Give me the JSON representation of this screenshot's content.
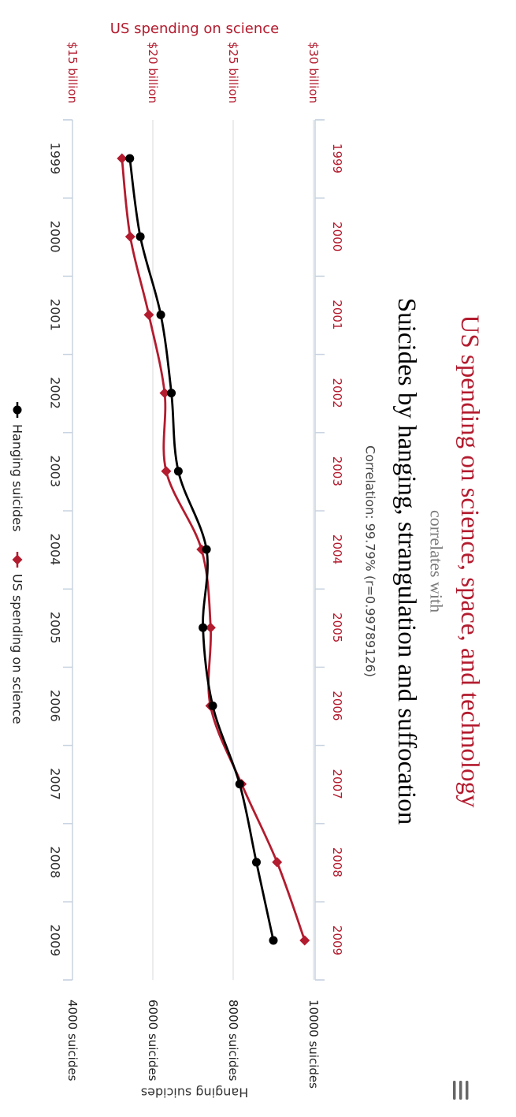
{
  "menu_icon": "hamburger-menu-icon",
  "colors": {
    "spending": "#b31b2e",
    "suicides": "#000000",
    "gray": "#7a7a7a",
    "axis": "#c8d3e0"
  },
  "chart_data": {
    "type": "line",
    "orientation": "rotated-90-clockwise",
    "title": {
      "line1": "US spending on science, space, and technology",
      "line2": "correlates with",
      "line3": "Suicides by hanging, strangulation and suffocation"
    },
    "subtitle": "Correlation: 99.79% (r=0.99789126)",
    "x": [
      "1999",
      "2000",
      "2001",
      "2002",
      "2003",
      "2004",
      "2005",
      "2006",
      "2007",
      "2008",
      "2009"
    ],
    "axes": {
      "spending": {
        "title": "US spending on science",
        "range": [
          15,
          30
        ],
        "ticks": [
          "$15 billion",
          "$20 billion",
          "$25 billion",
          "$30 billion"
        ]
      },
      "suicides": {
        "title": "Hanging suicides",
        "range": [
          4000,
          10000
        ],
        "ticks": [
          "4000 suicides",
          "6000 suicides",
          "8000 suicides",
          "10000 suicides"
        ]
      }
    },
    "series": [
      {
        "name": "Hanging suicides",
        "axis": "suicides",
        "color": "#000000",
        "marker": "circle",
        "values": [
          5427,
          5688,
          6198,
          6462,
          6635,
          7336,
          7248,
          7491,
          8161,
          8578,
          9000
        ]
      },
      {
        "name": "US spending on science",
        "axis": "spending",
        "color": "#b31b2e",
        "marker": "diamond",
        "values": [
          18.079,
          18.594,
          19.753,
          20.734,
          20.831,
          23.029,
          23.597,
          23.584,
          25.525,
          27.731,
          29.449
        ]
      }
    ],
    "legend": [
      "Hanging suicides",
      "US spending on science"
    ],
    "legend_position": "bottom",
    "grid": true
  }
}
